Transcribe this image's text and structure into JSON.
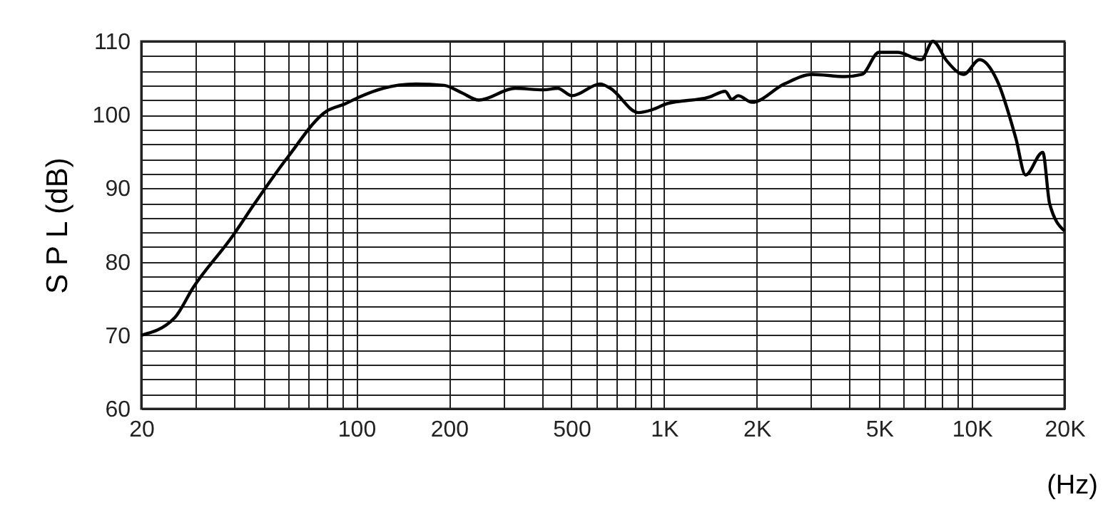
{
  "chart_data": {
    "type": "line",
    "xlabel": "(Hz)",
    "ylabel": "S P L (dB)",
    "log": "x",
    "grid": true,
    "marker": "none",
    "line_style": "solid",
    "xlim": [
      20,
      20000
    ],
    "ylim": [
      60,
      110
    ],
    "xticks": [
      20,
      {
        "value": 30,
        "label": null
      },
      {
        "value": 40,
        "label": null
      },
      {
        "value": 50,
        "label": null
      },
      {
        "value": 60,
        "label": null
      },
      {
        "value": 70,
        "label": null
      },
      {
        "value": 80,
        "label": null
      },
      {
        "value": 90,
        "label": null
      },
      100,
      200,
      {
        "value": 300,
        "label": null
      },
      {
        "value": 400,
        "label": null
      },
      500,
      {
        "value": 600,
        "label": null
      },
      {
        "value": 700,
        "label": null
      },
      {
        "value": 800,
        "label": null
      },
      {
        "value": 900,
        "label": null
      },
      {
        "value": 1000,
        "label": "1K"
      },
      {
        "value": 2000,
        "label": "2K"
      },
      {
        "value": 3000,
        "label": null
      },
      {
        "value": 4000,
        "label": null
      },
      {
        "value": 5000,
        "label": "5K"
      },
      {
        "value": 6000,
        "label": null
      },
      {
        "value": 7000,
        "label": null
      },
      {
        "value": 8000,
        "label": null
      },
      {
        "value": 9000,
        "label": null
      },
      {
        "value": 10000,
        "label": "10K"
      },
      {
        "value": 20000,
        "label": "20K"
      }
    ],
    "yticks": [
      60,
      {
        "value": 62,
        "label": null
      },
      {
        "value": 64,
        "label": null
      },
      {
        "value": 66,
        "label": null
      },
      {
        "value": 68,
        "label": null
      },
      70,
      {
        "value": 72,
        "label": null
      },
      {
        "value": 74,
        "label": null
      },
      {
        "value": 76,
        "label": null
      },
      {
        "value": 78,
        "label": null
      },
      80,
      {
        "value": 82,
        "label": null
      },
      {
        "value": 84,
        "label": null
      },
      {
        "value": 86,
        "label": null
      },
      {
        "value": 88,
        "label": null
      },
      90,
      {
        "value": 92,
        "label": null
      },
      {
        "value": 94,
        "label": null
      },
      {
        "value": 96,
        "label": null
      },
      {
        "value": 98,
        "label": null
      },
      100,
      {
        "value": 102,
        "label": null
      },
      {
        "value": 104,
        "label": null
      },
      {
        "value": 106,
        "label": null
      },
      {
        "value": 108,
        "label": null
      },
      110
    ],
    "x": [
      20,
      25.7,
      29.5,
      39.3,
      47,
      60,
      80,
      92,
      102,
      122,
      156,
      193,
      220,
      250,
      328,
      405,
      451,
      502,
      620,
      669,
      825,
      916,
      1020,
      1400,
      1580,
      1660,
      1740,
      1930,
      2460,
      3030,
      3870,
      4400,
      4990,
      5740,
      6860,
      7470,
      8300,
      9400,
      10600,
      12100,
      13900,
      14950,
      17000,
      17900,
      20000
    ],
    "series": [
      {
        "color": "#000000",
        "values": [
          70,
          72.4,
          76.5,
          83.3,
          88.1,
          94.3,
          100.5,
          101.5,
          102.4,
          103.6,
          104.2,
          104,
          103,
          102,
          103.6,
          103.4,
          103.6,
          102.6,
          104.2,
          103.6,
          100.3,
          100.7,
          101.5,
          102.4,
          103.2,
          102.1,
          102.6,
          101.7,
          104.2,
          105.5,
          105.2,
          105.5,
          108.5,
          108.5,
          107.5,
          110,
          107.3,
          105.5,
          107.5,
          104.6,
          96.8,
          91.8,
          94.9,
          87.9,
          84.2
        ]
      }
    ]
  }
}
